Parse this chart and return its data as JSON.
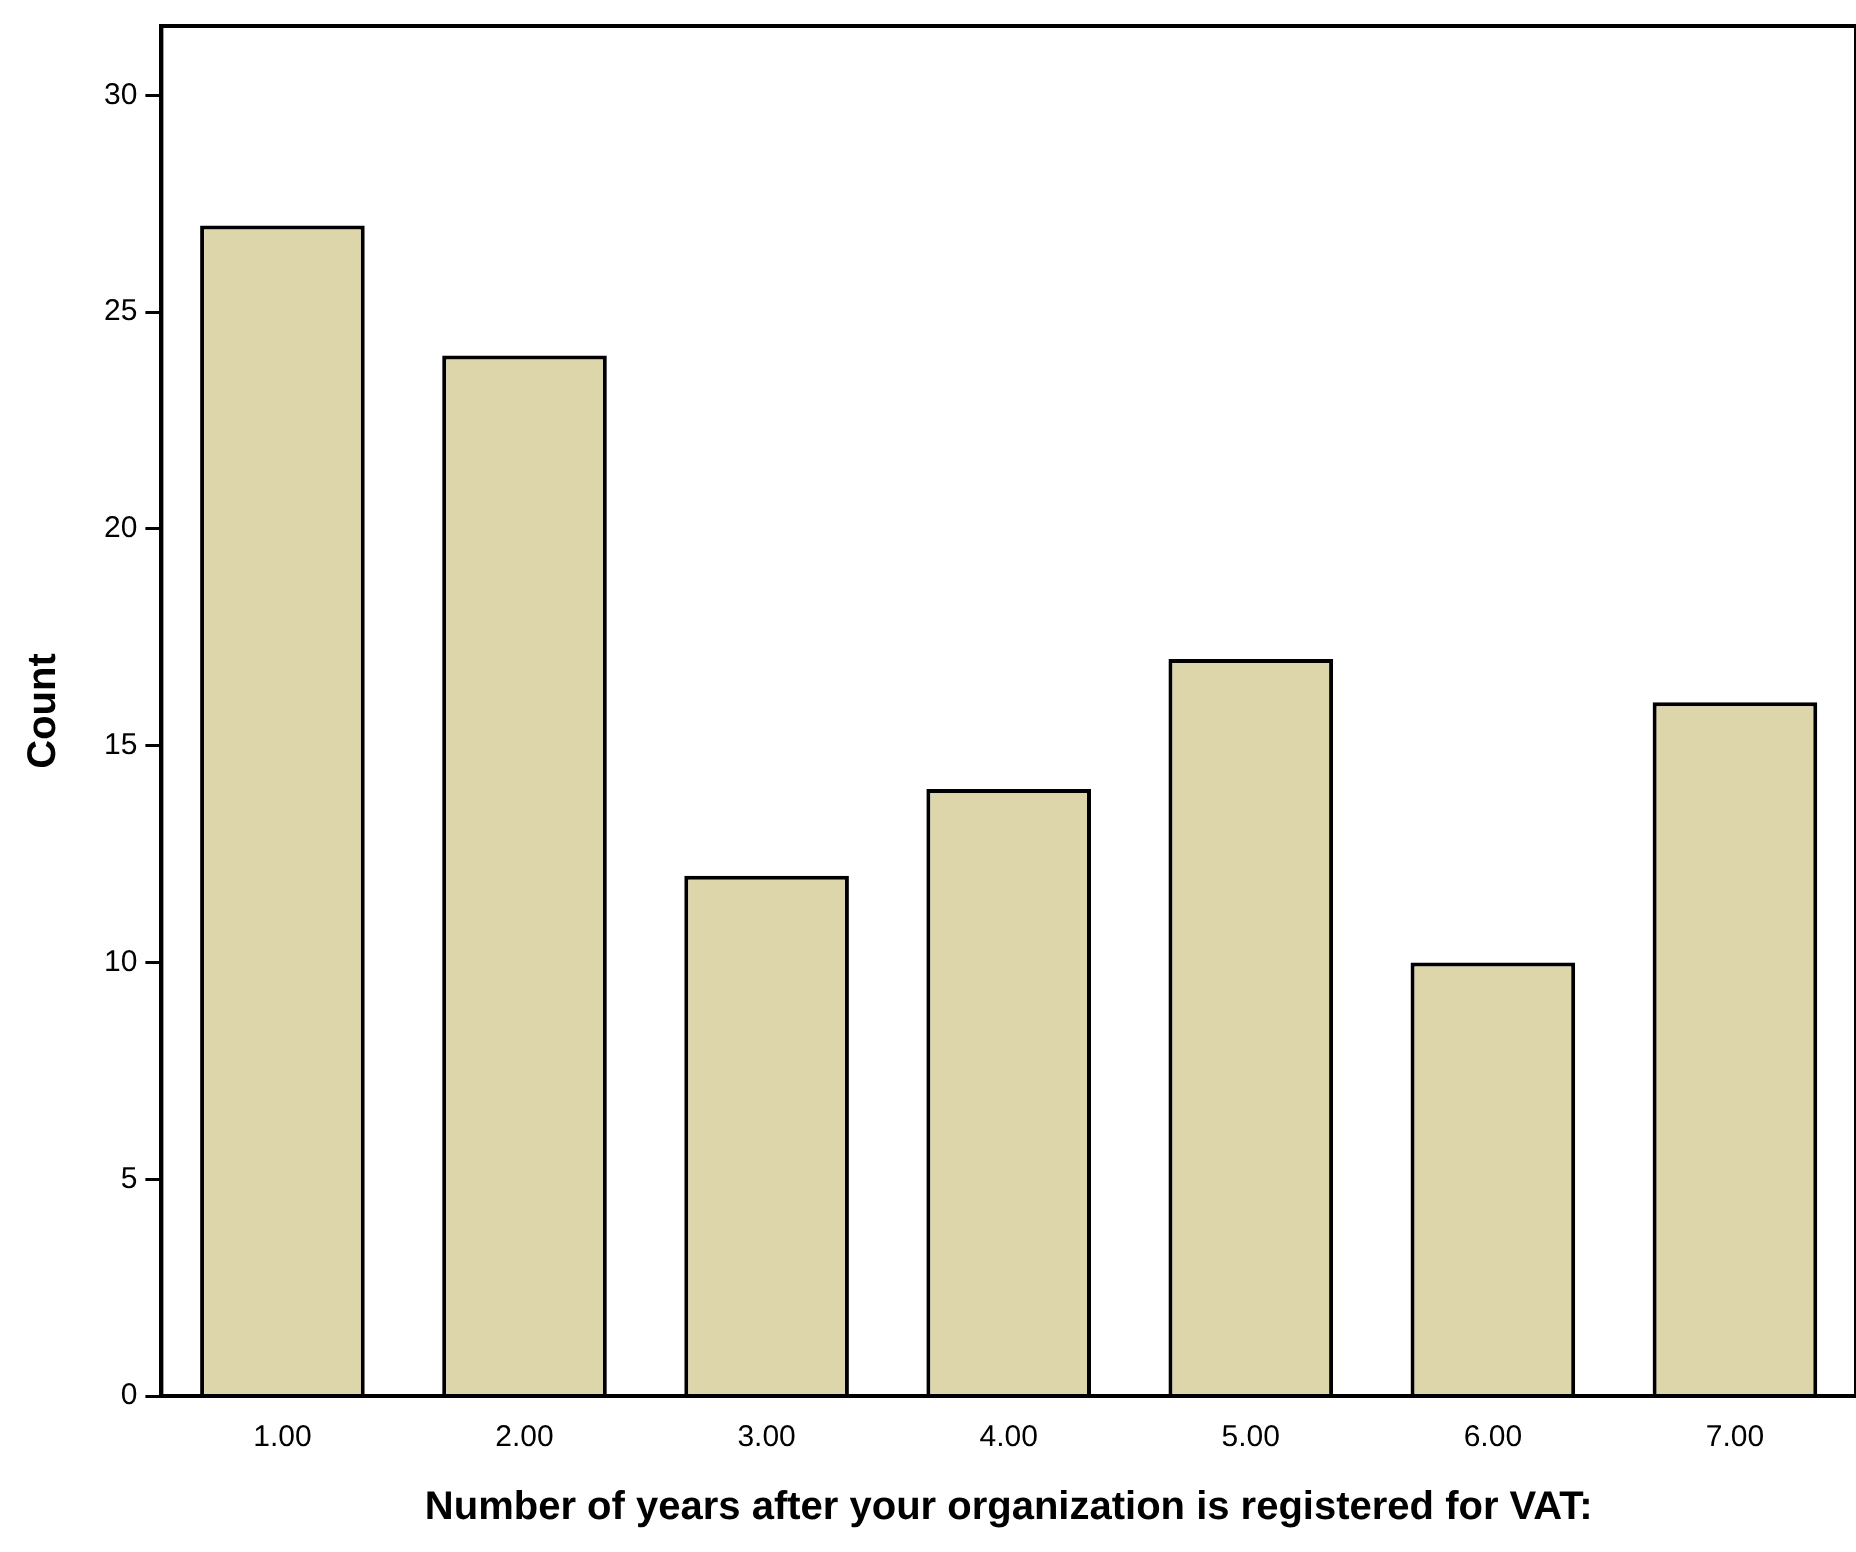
{
  "chart_data": {
    "type": "bar",
    "xlabel": "Number of years after your organization is registered for VAT:",
    "ylabel": "Count",
    "categories": [
      "1.00",
      "2.00",
      "3.00",
      "4.00",
      "5.00",
      "6.00",
      "7.00"
    ],
    "values": [
      27,
      24,
      12,
      14,
      17,
      10,
      16
    ],
    "color": "#ded6ab",
    "ylim": [
      0,
      31.6
    ],
    "yticks": [
      0,
      5,
      10,
      15,
      20,
      25,
      30
    ],
    "grid": false,
    "legend": false
  }
}
